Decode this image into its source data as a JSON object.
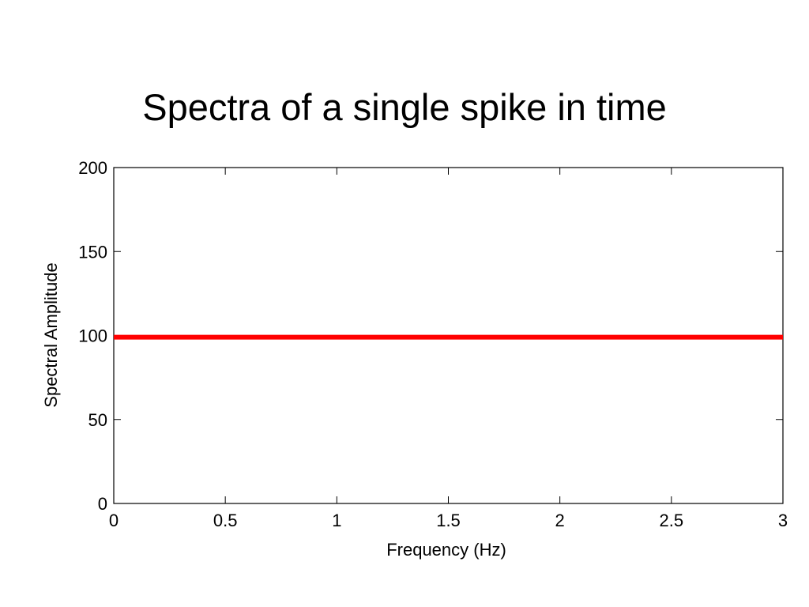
{
  "chart_data": {
    "type": "line",
    "title": "Spectra of a single spike in time",
    "x_label": "Frequency (Hz)",
    "y_label": "Spectral Amplitude",
    "x": [
      0,
      3
    ],
    "values": [
      99,
      99
    ],
    "color": "#ff0000",
    "xlim": [
      0,
      3
    ],
    "ylim": [
      0,
      200
    ],
    "xticks": [
      0,
      0.5,
      1,
      1.5,
      2,
      2.5,
      3
    ],
    "yticks": [
      0,
      50,
      100,
      150,
      200
    ]
  }
}
